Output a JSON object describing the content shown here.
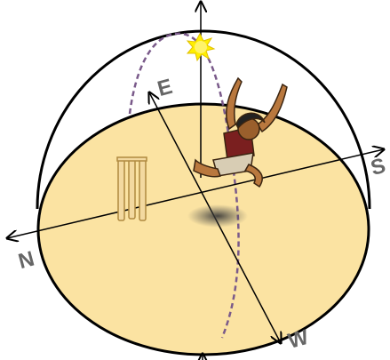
{
  "labels": {
    "north": "N",
    "east": "E",
    "south": "S",
    "west": "W"
  }
}
